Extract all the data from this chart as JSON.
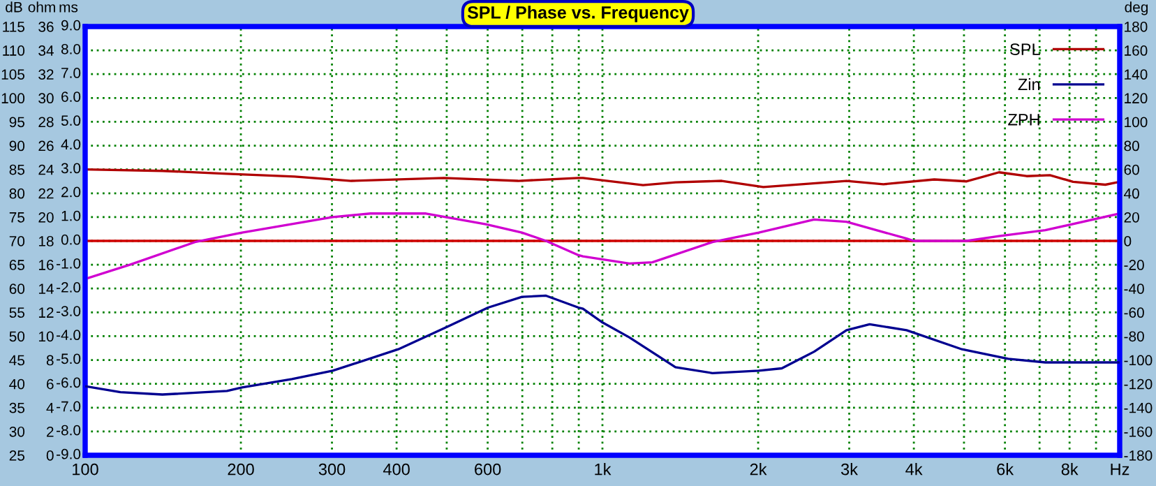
{
  "chart_data": {
    "type": "line",
    "title": "SPL / Phase vs. Frequency",
    "ylabel": "dB",
    "y2label": "deg",
    "y3label": "ohm",
    "annotations": [
      "ms",
      "-9.0",
      "-8.0",
      "-7.0",
      "-6.0",
      "-5.0",
      "-4.0",
      "-3.0",
      "-2.0",
      "-1.0",
      "0.0",
      "1.0",
      "2.0",
      "3.0",
      "4.0",
      "5.0",
      "6.0",
      "7.0",
      "8.0",
      "9.0"
    ],
    "x": [
      100,
      141,
      188,
      254,
      327,
      494,
      687,
      899,
      917,
      1198,
      1384,
      1701,
      2047,
      2964,
      3493,
      4380,
      5060,
      5843,
      6610,
      7330,
      8126,
      9380,
      10000
    ],
    "series": [
      {
        "name": "SPL",
        "color": "#b00000",
        "axis": "y",
        "values": [
          85,
          84.7,
          84.1,
          83.5,
          82.6,
          83.2,
          82.6,
          83.2,
          83.2,
          81.7,
          82.3,
          82.6,
          81.3,
          82.6,
          81.9,
          82.9,
          82.5,
          84.4,
          83.6,
          83.8,
          82.4,
          81.8,
          82.4
        ]
      },
      {
        "name": "Zin",
        "color": "#000090",
        "axis": "y3",
        "x": [
          100,
          117,
          141,
          188,
          201,
          251,
          301,
          403,
          502,
          601,
          699,
          778,
          899,
          917,
          996,
          1127,
          1384,
          1632,
          2005,
          2222,
          2566,
          2964,
          3285,
          3872,
          4955,
          6090,
          7180,
          10000
        ],
        "values": [
          5.8,
          5.3,
          5.1,
          5.4,
          5.7,
          6.4,
          7.1,
          8.9,
          10.8,
          12.4,
          13.3,
          13.4,
          12.4,
          12.3,
          11.2,
          9.9,
          7.4,
          6.9,
          7.1,
          7.3,
          8.7,
          10.5,
          11,
          10.5,
          8.9,
          8.1,
          7.8,
          7.8
        ]
      },
      {
        "name": "ZPH",
        "color": "#d000d0",
        "axis": "y2",
        "x": [
          100,
          122,
          163,
          201,
          301,
          356,
          456,
          595,
          699,
          778,
          899,
          917,
          1127,
          1249,
          1632,
          2005,
          2566,
          2964,
          3872,
          4000,
          5060,
          5843,
          7180,
          10000
        ],
        "values": [
          -32,
          -20,
          -1,
          7,
          20,
          23,
          23,
          14,
          7,
          0,
          -12,
          -13,
          -19,
          -18,
          -1,
          7,
          18,
          16,
          2,
          0,
          0,
          4,
          9,
          23
        ]
      }
    ],
    "ref_lines": [
      {
        "axis": "y2",
        "value": 0,
        "color": "#d00000"
      }
    ],
    "log": "x",
    "xlim": [
      100,
      10000
    ],
    "xticks": [
      100,
      200,
      300,
      400,
      {
        "value": 500,
        "label": null
      },
      600,
      {
        "value": 700,
        "label": null
      },
      {
        "value": 800,
        "label": null
      },
      {
        "value": 900,
        "label": null
      },
      {
        "value": 1000,
        "label": "1k"
      },
      {
        "value": 2000,
        "label": "2k"
      },
      {
        "value": 3000,
        "label": "3k"
      },
      {
        "value": 4000,
        "label": "4k"
      },
      {
        "value": 5000,
        "label": null
      },
      {
        "value": 6000,
        "label": "6k"
      },
      {
        "value": 7000,
        "label": null
      },
      {
        "value": 8000,
        "label": "8k"
      },
      {
        "value": 9000,
        "label": null
      },
      {
        "value": 10000,
        "label": "Hz"
      }
    ],
    "ylim": [
      25,
      115
    ],
    "yticks": [
      25,
      30,
      35,
      40,
      45,
      50,
      55,
      60,
      65,
      70,
      75,
      80,
      85,
      90,
      95,
      100,
      105,
      110,
      115
    ],
    "y2lim": [
      -180,
      180
    ],
    "y2ticks": [
      -180,
      -160,
      -140,
      -120,
      -100,
      -80,
      -60,
      -40,
      -20,
      0,
      20,
      40,
      60,
      80,
      100,
      120,
      140,
      160,
      180
    ],
    "y3lim": [
      0,
      36
    ],
    "y3ticks": [
      0,
      2,
      4,
      6,
      8,
      10,
      12,
      14,
      16,
      18,
      20,
      22,
      24,
      26,
      28,
      30,
      32,
      34,
      36
    ],
    "grid": true,
    "legend": "top right",
    "marker": "none",
    "line_style": "solid"
  }
}
